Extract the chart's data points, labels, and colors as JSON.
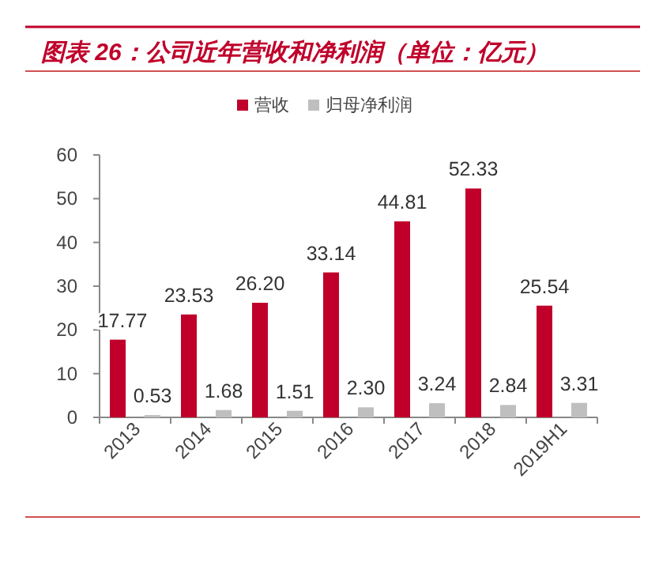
{
  "chart_data": {
    "type": "bar",
    "title": "图表 26：公司近年营收和净利润（单位：亿元）",
    "categories": [
      "2013",
      "2014",
      "2015",
      "2016",
      "2017",
      "2018",
      "2019H1"
    ],
    "series": [
      {
        "name": "营收",
        "color": "#c0002b",
        "values": [
          17.77,
          23.53,
          26.2,
          33.14,
          44.81,
          52.33,
          25.54
        ],
        "value_labels": [
          "17.77",
          "23.53",
          "26.20",
          "33.14",
          "44.81",
          "52.33",
          "25.54"
        ]
      },
      {
        "name": "归母净利润",
        "color": "#bfbfbf",
        "values": [
          0.53,
          1.68,
          1.51,
          2.3,
          3.24,
          2.84,
          3.31
        ],
        "value_labels": [
          "0.53",
          "1.68",
          "1.51",
          "2.30",
          "3.24",
          "2.84",
          "3.31"
        ]
      }
    ],
    "ylim": [
      0,
      60
    ],
    "yticks": [
      0,
      10,
      20,
      30,
      40,
      50,
      60
    ],
    "legend": "top",
    "grid": false
  }
}
